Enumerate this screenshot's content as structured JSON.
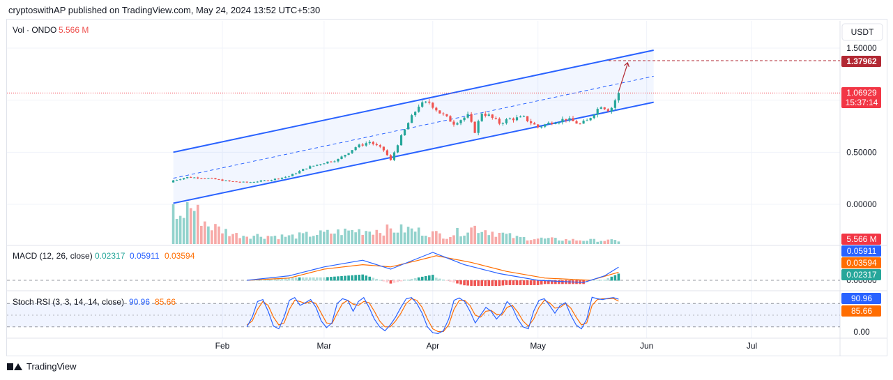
{
  "header": {
    "text": "cryptoswithAP published on TradingView.com, May 24, 2024 13:52 UTC+5:30"
  },
  "footer": {
    "logo_text": "TradingView"
  },
  "toolbar": {
    "currency": "USDT"
  },
  "legends": {
    "vol_label": "Vol · ONDO",
    "vol_value": "5.566 M",
    "macd_label": "MACD (12, 26, close)",
    "macd_v1": "0.02317",
    "macd_v2": "0.05911",
    "macd_v3": "0.03594",
    "rsi_label": "Stoch RSI (3, 3, 14, 14, close)",
    "rsi_v1": "90.96",
    "rsi_v2": "85.66"
  },
  "badges": {
    "target": "1.37962",
    "last_price": "1.06929",
    "countdown": "15:37:14",
    "volume": "5.566 M",
    "macd_1": "0.05911",
    "macd_2": "0.03594",
    "macd_3": "0.02317",
    "rsi_1": "90.96",
    "rsi_2": "85.66"
  },
  "colors": {
    "up": "#26a69a",
    "down": "#ef5350",
    "channel": "#2962ff",
    "macd_line": "#2962ff",
    "signal_line": "#ff6d00",
    "target": "#b22833",
    "last_price": "#f23645",
    "rsi_k": "#2962ff",
    "rsi_d": "#ff6d00"
  },
  "chart_data": [
    {
      "type": "candlestick",
      "title": "ONDO / USDT",
      "x_ticks": [
        "Feb",
        "Mar",
        "Apr",
        "May",
        "Jun",
        "Jul"
      ],
      "y_ticks": [
        "1.50000",
        "1.00000",
        "0.50000",
        "0.00000"
      ],
      "ylim": [
        -0.15,
        1.62
      ],
      "price_anchors": [
        {
          "date": "Jan 18",
          "price": 0.23
        },
        {
          "date": "Jan 22",
          "price": 0.26
        },
        {
          "date": "Jan 28",
          "price": 0.25
        },
        {
          "date": "Feb 3",
          "price": 0.22
        },
        {
          "date": "Feb 8",
          "price": 0.21
        },
        {
          "date": "Feb 14",
          "price": 0.23
        },
        {
          "date": "Feb 20",
          "price": 0.27
        },
        {
          "date": "Feb 25",
          "price": 0.35
        },
        {
          "date": "Mar 1",
          "price": 0.4
        },
        {
          "date": "Mar 5",
          "price": 0.43
        },
        {
          "date": "Mar 10",
          "price": 0.55
        },
        {
          "date": "Mar 14",
          "price": 0.6
        },
        {
          "date": "Mar 18",
          "price": 0.52
        },
        {
          "date": "Mar 20",
          "price": 0.42
        },
        {
          "date": "Mar 22",
          "price": 0.58
        },
        {
          "date": "Mar 25",
          "price": 0.78
        },
        {
          "date": "Mar 28",
          "price": 0.95
        },
        {
          "date": "Mar 31",
          "price": 0.98
        },
        {
          "date": "Apr 3",
          "price": 0.88
        },
        {
          "date": "Apr 7",
          "price": 0.78
        },
        {
          "date": "Apr 11",
          "price": 0.85
        },
        {
          "date": "Apr 13",
          "price": 0.7
        },
        {
          "date": "Apr 15",
          "price": 0.88
        },
        {
          "date": "Apr 17",
          "price": 0.85
        },
        {
          "date": "Apr 20",
          "price": 0.78
        },
        {
          "date": "Apr 23",
          "price": 0.82
        },
        {
          "date": "Apr 27",
          "price": 0.83
        },
        {
          "date": "May 1",
          "price": 0.74
        },
        {
          "date": "May 5",
          "price": 0.79
        },
        {
          "date": "May 9",
          "price": 0.82
        },
        {
          "date": "May 13",
          "price": 0.77
        },
        {
          "date": "May 15",
          "price": 0.8
        },
        {
          "date": "May 17",
          "price": 0.88
        },
        {
          "date": "May 19",
          "price": 0.95
        },
        {
          "date": "May 21",
          "price": 0.91
        },
        {
          "date": "May 22",
          "price": 0.93
        },
        {
          "date": "May 23",
          "price": 1.0
        },
        {
          "date": "May 24",
          "price": 1.06929
        }
      ],
      "last_price": 1.06929,
      "target_price": 1.37962,
      "channel": {
        "upper": [
          {
            "date": "Jan 18",
            "price": 0.5
          },
          {
            "date": "Jun 3",
            "price": 1.48
          }
        ],
        "mid": [
          {
            "date": "Jan 18",
            "price": 0.25
          },
          {
            "date": "Jun 3",
            "price": 1.23
          }
        ],
        "lower": [
          {
            "date": "Jan 18",
            "price": 0.01
          },
          {
            "date": "Jun 3",
            "price": 0.98
          }
        ]
      },
      "volume": {
        "last": "5.566 M",
        "anchors": [
          {
            "date": "Jan 18",
            "value": 0.95
          },
          {
            "date": "Jan 20",
            "value": 0.55
          },
          {
            "date": "Jan 22",
            "value": 1.0
          },
          {
            "date": "Jan 28",
            "value": 0.45
          },
          {
            "date": "Feb 5",
            "value": 0.22
          },
          {
            "date": "Feb 20",
            "value": 0.18
          },
          {
            "date": "Mar 10",
            "value": 0.32
          },
          {
            "date": "Mar 25",
            "value": 0.35
          },
          {
            "date": "Apr 5",
            "value": 0.2
          },
          {
            "date": "Apr 13",
            "value": 0.4
          },
          {
            "date": "Apr 25",
            "value": 0.15
          },
          {
            "date": "May 10",
            "value": 0.1
          },
          {
            "date": "May 24",
            "value": 0.08
          }
        ]
      }
    },
    {
      "type": "line",
      "title": "MACD (12, 26, close)",
      "series": [
        {
          "name": "MACD",
          "anchors": [
            {
              "date": "Feb 8",
              "value": 0.0
            },
            {
              "date": "Feb 20",
              "value": 0.02
            },
            {
              "date": "Mar 1",
              "value": 0.06
            },
            {
              "date": "Mar 12",
              "value": 0.09
            },
            {
              "date": "Mar 20",
              "value": 0.05
            },
            {
              "date": "Mar 28",
              "value": 0.1
            },
            {
              "date": "Apr 1",
              "value": 0.125
            },
            {
              "date": "Apr 10",
              "value": 0.07
            },
            {
              "date": "Apr 20",
              "value": 0.03
            },
            {
              "date": "May 1",
              "value": 0.0
            },
            {
              "date": "May 14",
              "value": -0.01
            },
            {
              "date": "May 20",
              "value": 0.02
            },
            {
              "date": "May 24",
              "value": 0.059
            }
          ]
        },
        {
          "name": "Signal",
          "anchors": [
            {
              "date": "Feb 8",
              "value": 0.0
            },
            {
              "date": "Feb 20",
              "value": 0.01
            },
            {
              "date": "Mar 1",
              "value": 0.05
            },
            {
              "date": "Mar 12",
              "value": 0.07
            },
            {
              "date": "Mar 20",
              "value": 0.06
            },
            {
              "date": "Mar 28",
              "value": 0.09
            },
            {
              "date": "Apr 2",
              "value": 0.11
            },
            {
              "date": "Apr 12",
              "value": 0.08
            },
            {
              "date": "Apr 22",
              "value": 0.04
            },
            {
              "date": "May 3",
              "value": 0.01
            },
            {
              "date": "May 16",
              "value": 0.0
            },
            {
              "date": "May 24",
              "value": 0.036
            }
          ]
        }
      ],
      "histogram_last": 0.02317
    },
    {
      "type": "line",
      "title": "Stoch RSI (3, 3, 14, 14, close)",
      "ylim": [
        0,
        100
      ],
      "y_ticks": [
        "0.00"
      ],
      "levels": [
        80,
        20
      ],
      "series": [
        {
          "name": "K",
          "values": [
            20,
            45,
            85,
            90,
            60,
            22,
            15,
            45,
            88,
            95,
            75,
            82,
            90,
            70,
            35,
            18,
            30,
            80,
            92,
            88,
            60,
            85,
            95,
            70,
            40,
            20,
            10,
            25,
            45,
            70,
            92,
            95,
            80,
            55,
            20,
            5,
            3,
            10,
            40,
            88,
            94,
            85,
            60,
            30,
            50,
            70,
            60,
            40,
            55,
            85,
            70,
            40,
            20,
            15,
            60,
            88,
            92,
            75,
            55,
            75,
            82,
            50,
            25,
            15,
            40,
            96,
            92,
            90,
            93,
            95,
            90.96
          ]
        },
        {
          "name": "D",
          "values": [
            25,
            35,
            65,
            85,
            75,
            45,
            25,
            30,
            65,
            88,
            85,
            80,
            85,
            80,
            55,
            30,
            28,
            55,
            80,
            88,
            78,
            75,
            85,
            82,
            60,
            35,
            20,
            20,
            35,
            55,
            80,
            92,
            88,
            70,
            40,
            15,
            8,
            8,
            25,
            65,
            88,
            88,
            75,
            50,
            45,
            60,
            62,
            52,
            50,
            70,
            75,
            58,
            35,
            22,
            40,
            70,
            88,
            82,
            68,
            70,
            80,
            68,
            45,
            25,
            30,
            75,
            90,
            92,
            92,
            93,
            85.66
          ]
        }
      ]
    }
  ]
}
